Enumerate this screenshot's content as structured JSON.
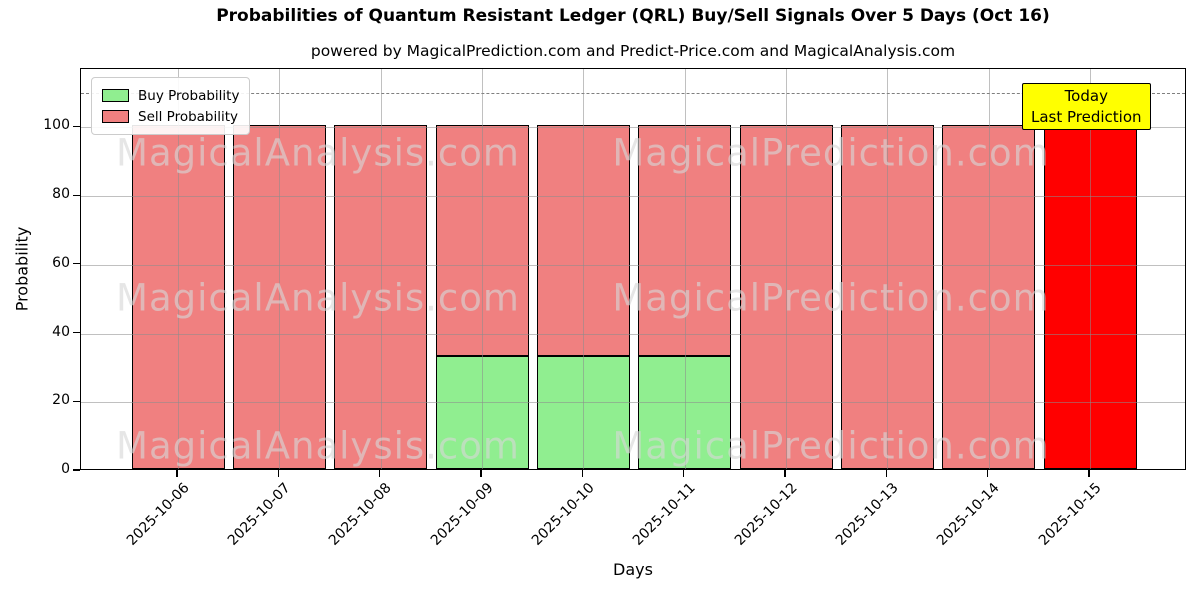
{
  "header": {
    "title": "Probabilities of Quantum Resistant Ledger (QRL) Buy/Sell Signals Over 5 Days (Oct 16)",
    "subtitle": "powered by MagicalPrediction.com and Predict-Price.com and MagicalAnalysis.com"
  },
  "legend": {
    "items": [
      {
        "label": "Buy Probability",
        "color": "#90ee90"
      },
      {
        "label": "Sell Probability",
        "color": "#f08080"
      }
    ]
  },
  "annotation": {
    "lines": [
      "Today",
      "Last Prediction"
    ],
    "bg_color": "#ffff00"
  },
  "watermarks": {
    "left_text": "MagicalAnalysis.com",
    "right_text": "MagicalPrediction.com"
  },
  "colors": {
    "buy": "#90ee90",
    "sell": "#f08080",
    "today_bar": "#ff0000",
    "bar_edge": "#000000",
    "dashed_line": "#7f7f7f",
    "grid": "#b0b0b0",
    "annotation_bg": "#ffff00"
  },
  "chart_data": {
    "type": "bar",
    "stacked": true,
    "title": "Probabilities of Quantum Resistant Ledger (QRL) Buy/Sell Signals Over 5 Days (Oct 16)",
    "subtitle": "powered by MagicalPrediction.com and Predict-Price.com and MagicalAnalysis.com",
    "xlabel": "Days",
    "ylabel": "Probability",
    "categories": [
      "2025-10-06",
      "2025-10-07",
      "2025-10-08",
      "2025-10-09",
      "2025-10-10",
      "2025-10-11",
      "2025-10-12",
      "2025-10-13",
      "2025-10-14",
      "2025-10-15"
    ],
    "series": [
      {
        "name": "Buy Probability",
        "color": "#90ee90",
        "values": [
          0,
          0,
          0,
          33,
          33,
          33,
          0,
          0,
          0,
          0
        ]
      },
      {
        "name": "Sell Probability",
        "color": "#f08080",
        "values": [
          100,
          100,
          100,
          67,
          67,
          67,
          100,
          100,
          100,
          100
        ]
      }
    ],
    "bar_color_overrides": [
      {
        "category_index": 9,
        "series": "Sell Probability",
        "color": "#ff0000",
        "reason_label": "Today Last Prediction"
      }
    ],
    "yticks": [
      0,
      20,
      40,
      60,
      80,
      100
    ],
    "ylim": [
      0,
      117
    ],
    "dashed_line_y": 110,
    "grid": true,
    "legend_position": "upper left",
    "xtick_rotation_deg": 45
  }
}
